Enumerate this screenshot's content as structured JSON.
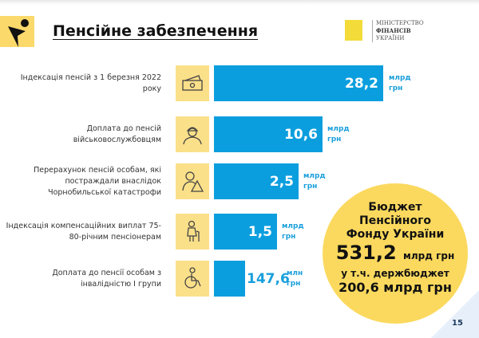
{
  "header": {
    "title": "Пенсійне забезпечення",
    "ministry": [
      "МІНІСТЕРСТВО",
      "ФІНАНСІВ",
      "УКРАЇНИ"
    ]
  },
  "rows": [
    {
      "label": "Індексація пенсій з 1 березня 2022 року",
      "value": "28,2",
      "unit": [
        "млрд",
        "грн"
      ],
      "icon": "money-icon"
    },
    {
      "label": "Доплата до пенсій військовослужбовцям",
      "value": "10,6",
      "unit": [
        "млрд",
        "грн"
      ],
      "icon": "soldier-icon"
    },
    {
      "label": "Перерахунок пенсій особам, які постраждали внаслідок Чорнобильської катастрофи",
      "value": "2,5",
      "unit": [
        "млрд",
        "грн"
      ],
      "icon": "radiation-person-icon"
    },
    {
      "label": "Індексація компенсаційних виплат 75-80-річним пенсіонерам",
      "value": "1,5",
      "unit": [
        "млрд",
        "грн"
      ],
      "icon": "elderly-person-icon"
    },
    {
      "label": "Доплата до пенсії особам з інвалідністю І групи",
      "value": "147,6",
      "unit": [
        "млн",
        "грн"
      ],
      "icon": "wheelchair-icon"
    }
  ],
  "budget": {
    "line1": "Бюджет",
    "line2": "Пенсійного",
    "line3": "Фонду України",
    "amount": "531,2",
    "amount_unit": "млрд грн",
    "line4": "у т.ч. держбюджет",
    "line5": "200,6 млрд грн"
  },
  "page_number": "15",
  "colors": {
    "bar": "#0b9ede",
    "accent": "#fbd95e"
  }
}
